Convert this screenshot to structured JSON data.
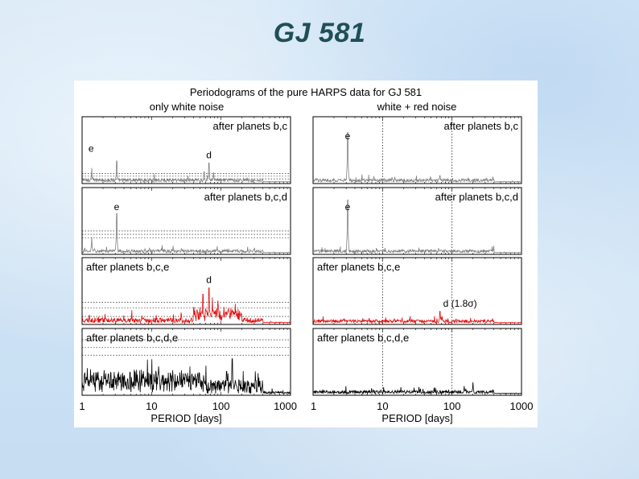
{
  "slide": {
    "title": "GJ 581"
  },
  "chart_data": {
    "type": "line",
    "title": "Periodograms of the pure HARPS data for GJ 581",
    "columns": [
      "only white noise",
      "white + red noise"
    ],
    "xlabel": "PERIOD [days]",
    "xscale": "log",
    "xlim": [
      1,
      1000
    ],
    "xticks": [
      "1",
      "10",
      "100",
      "1000"
    ],
    "grid": false,
    "colors": {
      "gray": "#808080",
      "red": "#e01010",
      "black": "#000000"
    },
    "panels": [
      {
        "id": "wn-bc",
        "column": 0,
        "row": 0,
        "label": "after planets b,c",
        "label_pos": "top-right",
        "color": "#808080",
        "peaks": [
          {
            "period": 3.15,
            "height": 0.33
          },
          {
            "period": 1.37,
            "height": 0.22
          },
          {
            "period": 66.9,
            "height": 0.3
          },
          {
            "period": 78,
            "height": 0.15
          },
          {
            "period": 57,
            "height": 0.16
          }
        ],
        "annotations": [
          {
            "text": "e",
            "period": 1.35
          },
          {
            "text": "d",
            "period": 66.9
          }
        ],
        "thresholds": [
          0.07,
          0.11,
          0.15
        ],
        "red_noise_lines": []
      },
      {
        "id": "wrn-bc",
        "column": 1,
        "row": 0,
        "label": "after planets b,c",
        "label_pos": "top-right",
        "color": "#808080",
        "peaks": [
          {
            "period": 3.15,
            "height": 0.78
          },
          {
            "period": 66.9,
            "height": 0.1
          }
        ],
        "annotations": [
          {
            "text": "e",
            "period": 3.15
          }
        ],
        "thresholds": [],
        "red_noise_lines": [
          10,
          100
        ]
      },
      {
        "id": "wn-bcd",
        "column": 0,
        "row": 1,
        "label": "after planets b,c,d",
        "label_pos": "top-right",
        "color": "#808080",
        "peaks": [
          {
            "period": 3.15,
            "height": 0.62
          },
          {
            "period": 1.37,
            "height": 0.25
          }
        ],
        "annotations": [
          {
            "text": "e",
            "period": 3.15
          }
        ],
        "thresholds": [
          0.25,
          0.3,
          0.35
        ],
        "red_noise_lines": []
      },
      {
        "id": "wrn-bcd",
        "column": 1,
        "row": 1,
        "label": "after planets b,c,d",
        "label_pos": "top-right",
        "color": "#808080",
        "peaks": [
          {
            "period": 3.15,
            "height": 0.83
          }
        ],
        "annotations": [
          {
            "text": "e",
            "period": 3.15
          }
        ],
        "thresholds": [],
        "red_noise_lines": [
          10,
          100
        ]
      },
      {
        "id": "wn-bce",
        "column": 0,
        "row": 2,
        "label": "after planets b,c,e",
        "label_pos": "top-left",
        "color": "#e01010",
        "peaks": [
          {
            "period": 66.9,
            "height": 0.55
          },
          {
            "period": 55,
            "height": 0.45
          },
          {
            "period": 75,
            "height": 0.4
          },
          {
            "period": 90,
            "height": 0.35
          },
          {
            "period": 110,
            "height": 0.25
          },
          {
            "period": 160,
            "height": 0.3
          }
        ],
        "annotations": [
          {
            "text": "d",
            "period": 66.9
          }
        ],
        "thresholds": [
          0.12,
          0.25,
          0.33
        ],
        "red_noise_lines": []
      },
      {
        "id": "wrn-bce",
        "column": 1,
        "row": 2,
        "label": "after planets b,c,e",
        "label_pos": "top-left",
        "color": "#e01010",
        "peaks": [
          {
            "period": 66.9,
            "height": 0.18
          },
          {
            "period": 72,
            "height": 0.1
          }
        ],
        "annotations": [
          {
            "text": "d (1.8σ)",
            "period": 66.9
          }
        ],
        "thresholds": [],
        "red_noise_lines": [
          10,
          100
        ]
      },
      {
        "id": "wn-bcde",
        "column": 0,
        "row": 3,
        "label": "after planets b,c,d,e",
        "label_pos": "top-left",
        "color": "#000000",
        "peaks": [
          {
            "period": 145,
            "height": 0.55
          },
          {
            "period": 120,
            "height": 0.35
          },
          {
            "period": 350,
            "height": 0.25
          }
        ],
        "annotations": [],
        "thresholds": [
          0.6,
          0.72,
          0.83
        ],
        "red_noise_lines": []
      },
      {
        "id": "wrn-bcde",
        "column": 1,
        "row": 3,
        "label": "after planets b,c,d,e",
        "label_pos": "top-left",
        "color": "#000000",
        "peaks": [
          {
            "period": 200,
            "height": 0.18
          },
          {
            "period": 150,
            "height": 0.12
          }
        ],
        "annotations": [],
        "thresholds": [],
        "red_noise_lines": [
          10,
          100
        ]
      }
    ]
  }
}
